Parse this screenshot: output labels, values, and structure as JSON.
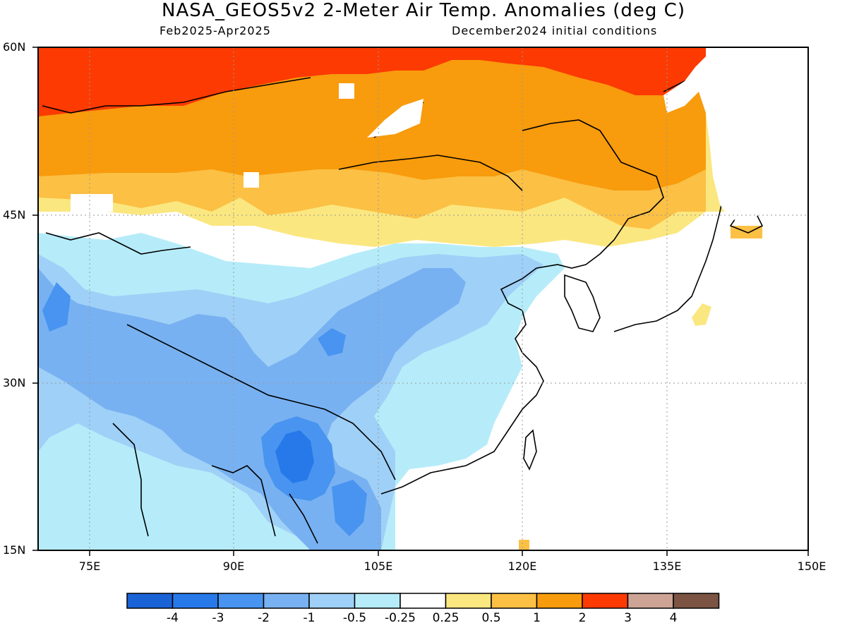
{
  "title": "NASA_GEOS5v2 2-Meter Air Temp. Anomalies (deg C)",
  "subtitle_left": "Feb2025-Apr2025",
  "subtitle_right": "December2024 initial conditions",
  "y_ticks": [
    "60N",
    "45N",
    "30N",
    "15N"
  ],
  "x_ticks": [
    "75E",
    "90E",
    "105E",
    "120E",
    "135E",
    "150E"
  ],
  "colorbar": {
    "colors": [
      "#1a63d6",
      "#2779ea",
      "#4894f0",
      "#78b1f2",
      "#9fd0f7",
      "#b6ecf9",
      "#ffffff",
      "#fbe780",
      "#fbc044",
      "#f89b0c",
      "#fc3a02",
      "#cca395",
      "#7b5444"
    ],
    "labels": [
      "-4",
      "-3",
      "-2",
      "-1",
      "-0.5",
      "-0.25",
      "0.25",
      "0.5",
      "1",
      "2",
      "3",
      "4"
    ]
  },
  "palette": {
    "red": "#fc3a02",
    "orange": "#f89b0c",
    "light_orange": "#fbc044",
    "yellow": "#fbe780",
    "pale_blue": "#b6ecf9",
    "light_blue": "#9fd0f7",
    "mid_blue": "#78b1f2",
    "blue": "#4894f0",
    "deep_blue": "#2779ea"
  }
}
